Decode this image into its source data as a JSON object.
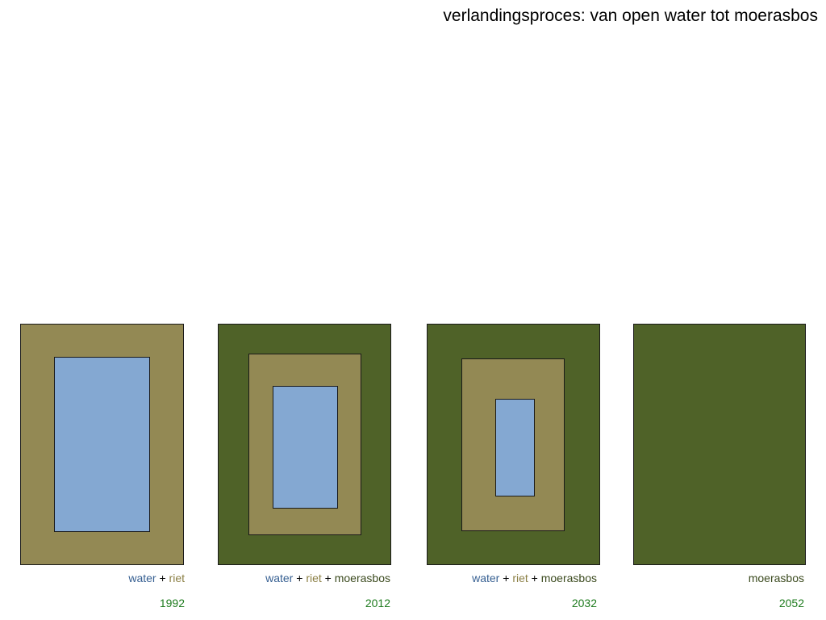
{
  "title": "verlandingsproces: van open water tot moerasbos",
  "colors": {
    "water": "#84A8D2",
    "riet": "#938954",
    "moerasbos": "#4F6228",
    "water_text": "#376092",
    "riet_text": "#8B7F44",
    "moerasbos_text": "#3B4A1E",
    "year_text": "#1E7B1E"
  },
  "panels": [
    {
      "year": "1992",
      "parts": [
        "water",
        "riet"
      ]
    },
    {
      "year": "2012",
      "parts": [
        "water",
        "riet",
        "moerasbos"
      ]
    },
    {
      "year": "2032",
      "parts": [
        "water",
        "riet",
        "moerasbos"
      ]
    },
    {
      "year": "2052",
      "parts": [
        "moerasbos"
      ]
    }
  ],
  "labels": {
    "water": "water",
    "riet": "riet",
    "moerasbos": "moerasbos",
    "plus": " + "
  }
}
